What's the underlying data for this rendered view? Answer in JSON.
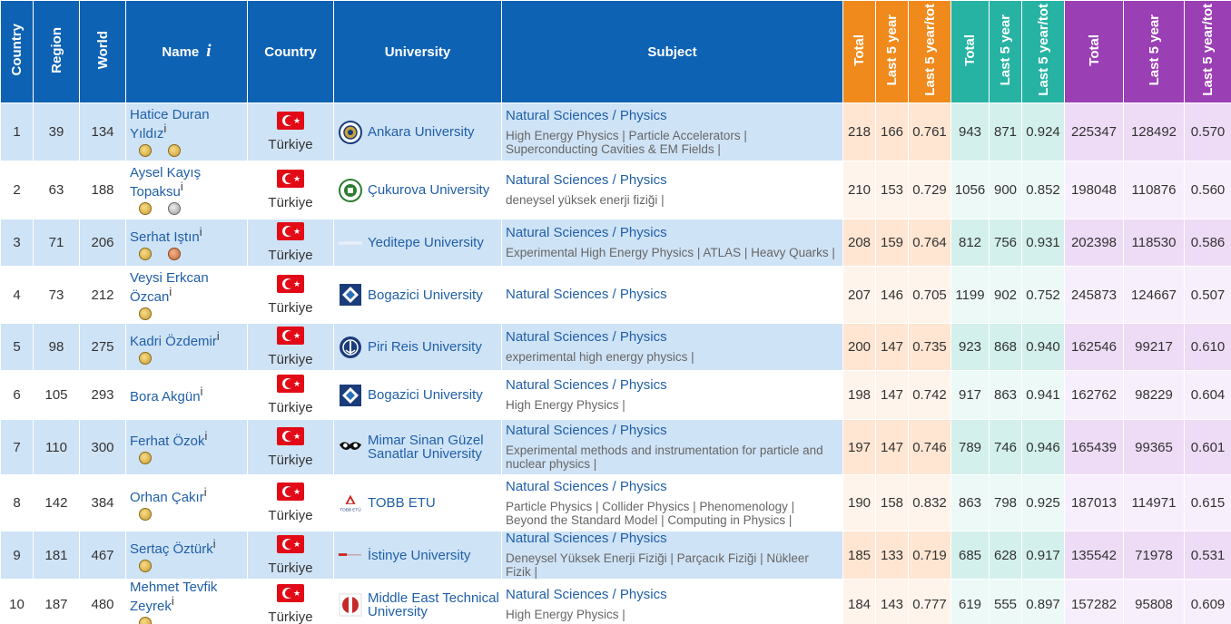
{
  "headers": {
    "country_rank": "Country",
    "region_rank": "Region",
    "world_rank": "World",
    "name": "Name",
    "name_info": "i",
    "country": "Country",
    "university": "University",
    "subject": "Subject",
    "h_total": "Total",
    "h_last5": "Last 5 year",
    "h_ratio": "Last 5 year/tot",
    "i10_total": "Total",
    "i10_last5": "Last 5 year",
    "i10_ratio": "Last 5 year/tot",
    "cit_total": "Total",
    "cit_last5": "Last 5 year",
    "cit_ratio": "Last 5 year/tot"
  },
  "colors": {
    "header_blue": "#0e62b4",
    "header_orange": "#f08a1c",
    "header_teal": "#27b3a4",
    "header_purple": "#9b3fb5",
    "row_highlight": "#cfe3f6",
    "link": "#1f5fa8",
    "info_mark": "#e0242c"
  },
  "rows": [
    {
      "country_rank": "1",
      "region_rank": "39",
      "world_rank": "134",
      "name": "Hatice Duran Yıldız",
      "info": "i",
      "medals": [
        "gold",
        "gold"
      ],
      "country": "Türkiye",
      "flag_icon": "turkey-flag-icon",
      "university": "Ankara University",
      "logo_icon": "ankara-university-logo-icon",
      "subject": "Natural Sciences / Physics",
      "subject_detail": "High Energy Physics | Particle Accelerators | Superconducting Cavities & EM Fields |",
      "h_total": "218",
      "h_last5": "166",
      "h_ratio": "0.761",
      "i10_total": "943",
      "i10_last5": "871",
      "i10_ratio": "0.924",
      "cit_total": "225347",
      "cit_last5": "128492",
      "cit_ratio": "0.570"
    },
    {
      "country_rank": "2",
      "region_rank": "63",
      "world_rank": "188",
      "name": "Aysel Kayış Topaksu",
      "info": "i",
      "medals": [
        "gold",
        "silver"
      ],
      "country": "Türkiye",
      "flag_icon": "turkey-flag-icon",
      "university": "Çukurova University",
      "logo_icon": "cukurova-university-logo-icon",
      "subject": "Natural Sciences / Physics",
      "subject_detail": "deneysel yüksek enerji fiziği |",
      "h_total": "210",
      "h_last5": "153",
      "h_ratio": "0.729",
      "i10_total": "1056",
      "i10_last5": "900",
      "i10_ratio": "0.852",
      "cit_total": "198048",
      "cit_last5": "110876",
      "cit_ratio": "0.560"
    },
    {
      "country_rank": "3",
      "region_rank": "71",
      "world_rank": "206",
      "name": "Serhat Iştın",
      "info": "i",
      "medals": [
        "gold",
        "bronze"
      ],
      "country": "Türkiye",
      "flag_icon": "turkey-flag-icon",
      "university": "Yeditepe University",
      "logo_icon": "yeditepe-university-logo-icon",
      "subject": "Natural Sciences / Physics",
      "subject_detail": "Experimental High Energy Physics | ATLAS | Heavy Quarks |",
      "h_total": "208",
      "h_last5": "159",
      "h_ratio": "0.764",
      "i10_total": "812",
      "i10_last5": "756",
      "i10_ratio": "0.931",
      "cit_total": "202398",
      "cit_last5": "118530",
      "cit_ratio": "0.586"
    },
    {
      "country_rank": "4",
      "region_rank": "73",
      "world_rank": "212",
      "name": "Veysi Erkcan Özcan",
      "info": "i",
      "medals": [
        "gold"
      ],
      "country": "Türkiye",
      "flag_icon": "turkey-flag-icon",
      "university": "Bogazici University",
      "logo_icon": "bogazici-university-logo-icon",
      "subject": "Natural Sciences / Physics",
      "subject_detail": "",
      "h_total": "207",
      "h_last5": "146",
      "h_ratio": "0.705",
      "i10_total": "1199",
      "i10_last5": "902",
      "i10_ratio": "0.752",
      "cit_total": "245873",
      "cit_last5": "124667",
      "cit_ratio": "0.507"
    },
    {
      "country_rank": "5",
      "region_rank": "98",
      "world_rank": "275",
      "name": "Kadri Özdemir",
      "info": "i",
      "medals": [
        "gold"
      ],
      "country": "Türkiye",
      "flag_icon": "turkey-flag-icon",
      "university": "Piri Reis University",
      "logo_icon": "piri-reis-university-logo-icon",
      "subject": "Natural Sciences / Physics",
      "subject_detail": "experimental high energy physics |",
      "h_total": "200",
      "h_last5": "147",
      "h_ratio": "0.735",
      "i10_total": "923",
      "i10_last5": "868",
      "i10_ratio": "0.940",
      "cit_total": "162546",
      "cit_last5": "99217",
      "cit_ratio": "0.610"
    },
    {
      "country_rank": "6",
      "region_rank": "105",
      "world_rank": "293",
      "name": "Bora Akgün",
      "info": "i",
      "medals": [],
      "country": "Türkiye",
      "flag_icon": "turkey-flag-icon",
      "university": "Bogazici University",
      "logo_icon": "bogazici-university-logo-icon",
      "subject": "Natural Sciences / Physics",
      "subject_detail": "High Energy Physics |",
      "h_total": "198",
      "h_last5": "147",
      "h_ratio": "0.742",
      "i10_total": "917",
      "i10_last5": "863",
      "i10_ratio": "0.941",
      "cit_total": "162762",
      "cit_last5": "98229",
      "cit_ratio": "0.604"
    },
    {
      "country_rank": "7",
      "region_rank": "110",
      "world_rank": "300",
      "name": "Ferhat Özok",
      "info": "i",
      "medals": [
        "gold"
      ],
      "country": "Türkiye",
      "flag_icon": "turkey-flag-icon",
      "university": "Mimar Sinan Güzel Sanatlar University",
      "logo_icon": "mimar-sinan-university-logo-icon",
      "subject": "Natural Sciences / Physics",
      "subject_detail": "Experimental methods and instrumentation for particle and nuclear physics |",
      "h_total": "197",
      "h_last5": "147",
      "h_ratio": "0.746",
      "i10_total": "789",
      "i10_last5": "746",
      "i10_ratio": "0.946",
      "cit_total": "165439",
      "cit_last5": "99365",
      "cit_ratio": "0.601"
    },
    {
      "country_rank": "8",
      "region_rank": "142",
      "world_rank": "384",
      "name": "Orhan Çakır",
      "info": "i",
      "medals": [
        "gold"
      ],
      "country": "Türkiye",
      "flag_icon": "turkey-flag-icon",
      "university": "TOBB ETU",
      "logo_icon": "tobb-etu-logo-icon",
      "subject": "Natural Sciences / Physics",
      "subject_detail": "Particle Physics | Collider Physics | Phenomenology | Beyond the Standard Model | Computing in Physics |",
      "h_total": "190",
      "h_last5": "158",
      "h_ratio": "0.832",
      "i10_total": "863",
      "i10_last5": "798",
      "i10_ratio": "0.925",
      "cit_total": "187013",
      "cit_last5": "114971",
      "cit_ratio": "0.615"
    },
    {
      "country_rank": "9",
      "region_rank": "181",
      "world_rank": "467",
      "name": "Sertaç Öztürk",
      "info": "i",
      "medals": [
        "gold"
      ],
      "country": "Türkiye",
      "flag_icon": "turkey-flag-icon",
      "university": "İstinye University",
      "logo_icon": "istinye-university-logo-icon",
      "subject": "Natural Sciences / Physics",
      "subject_detail": "Deneysel Yüksek Enerji Fiziği | Parçacık Fiziği | Nükleer Fizik |",
      "h_total": "185",
      "h_last5": "133",
      "h_ratio": "0.719",
      "i10_total": "685",
      "i10_last5": "628",
      "i10_ratio": "0.917",
      "cit_total": "135542",
      "cit_last5": "71978",
      "cit_ratio": "0.531"
    },
    {
      "country_rank": "10",
      "region_rank": "187",
      "world_rank": "480",
      "name": "Mehmet Tevfik Zeyrek",
      "info": "i",
      "medals": [
        "gold"
      ],
      "country": "Türkiye",
      "flag_icon": "turkey-flag-icon",
      "university": "Middle East Technical University",
      "logo_icon": "metu-logo-icon",
      "subject": "Natural Sciences / Physics",
      "subject_detail": "High Energy Physics |",
      "h_total": "184",
      "h_last5": "143",
      "h_ratio": "0.777",
      "i10_total": "619",
      "i10_last5": "555",
      "i10_ratio": "0.897",
      "cit_total": "157282",
      "cit_last5": "95808",
      "cit_ratio": "0.609"
    }
  ]
}
